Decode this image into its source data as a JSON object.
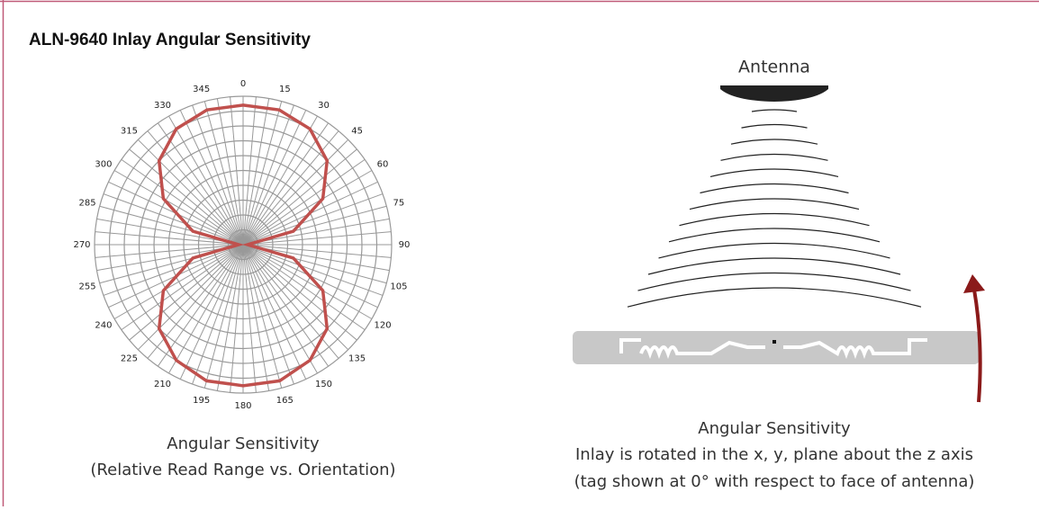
{
  "title": "ALN-9640 Inlay Angular Sensitivity",
  "chart_data": {
    "type": "polar",
    "theta": [
      0,
      15,
      30,
      45,
      60,
      75,
      90,
      105,
      120,
      135,
      150,
      165,
      180,
      195,
      210,
      225,
      240,
      255,
      270,
      285,
      300,
      315,
      330,
      345
    ],
    "values": [
      0.94,
      0.94,
      0.9,
      0.8,
      0.62,
      0.35,
      0.03,
      0.35,
      0.62,
      0.8,
      0.9,
      0.95,
      0.95,
      0.95,
      0.9,
      0.8,
      0.62,
      0.35,
      0.03,
      0.35,
      0.62,
      0.8,
      0.9,
      0.94
    ],
    "color": "#c0504d",
    "rlim": [
      0,
      1
    ],
    "thetaticks": [
      0,
      15,
      30,
      45,
      60,
      75,
      90,
      105,
      120,
      135,
      150,
      165,
      180,
      195,
      210,
      225,
      240,
      255,
      270,
      285,
      300,
      315,
      330,
      345
    ],
    "grid": true,
    "caption": [
      "Angular Sensitivity",
      "(Relative Read Range vs. Orientation)"
    ]
  },
  "diagram": {
    "antenna_label": "Antenna",
    "caption": [
      "Angular Sensitivity",
      "Inlay is rotated in the x, y, plane about the z axis",
      "(tag shown at 0° with respect to face of antenna)"
    ]
  }
}
